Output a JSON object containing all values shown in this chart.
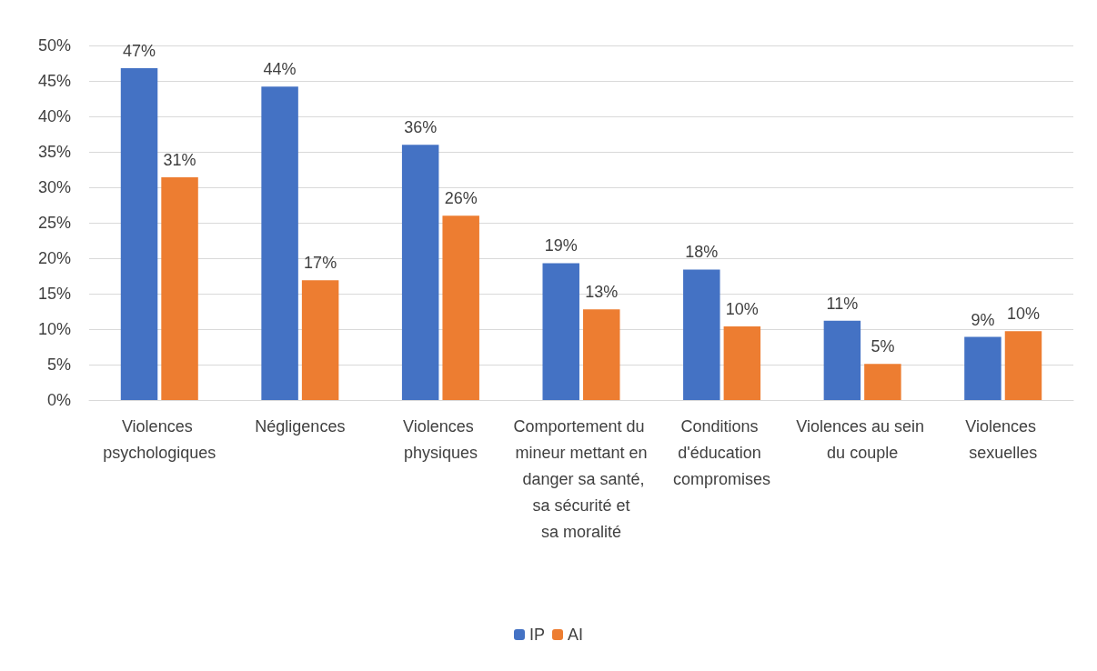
{
  "chart_data": {
    "type": "bar",
    "categories": [
      "Violences psychologiques",
      "Négligences",
      "Violences physiques",
      "Comportement du mineur mettant en danger sa santé, sa sécurité et sa moralité",
      "Conditions d'éducation compromises",
      "Violences au sein du couple",
      "Violences sexuelles"
    ],
    "series": [
      {
        "name": "IP",
        "color": "#4472c4",
        "values": [
          46.8,
          44.2,
          36.0,
          19.3,
          18.4,
          11.2,
          8.9
        ],
        "value_labels": [
          "47%",
          "44%",
          "36%",
          "19%",
          "18%",
          "11%",
          "9%"
        ]
      },
      {
        "name": "AI",
        "color": "#ed7d31",
        "values": [
          31.4,
          16.9,
          26.0,
          12.8,
          10.4,
          5.1,
          9.7
        ],
        "value_labels": [
          "31%",
          "17%",
          "26%",
          "13%",
          "10%",
          "5%",
          "10%"
        ]
      }
    ],
    "ylim": [
      0,
      50
    ],
    "yticks": [
      {
        "value": 0,
        "label": "0%"
      },
      {
        "value": 5,
        "label": "5%"
      },
      {
        "value": 10,
        "label": "10%"
      },
      {
        "value": 15,
        "label": "15%"
      },
      {
        "value": 20,
        "label": "20%"
      },
      {
        "value": 25,
        "label": "25%"
      },
      {
        "value": 30,
        "label": "30%"
      },
      {
        "value": 35,
        "label": "35%"
      },
      {
        "value": 40,
        "label": "40%"
      },
      {
        "value": 45,
        "label": "45%"
      },
      {
        "value": 50,
        "label": "50%"
      }
    ],
    "grid": "y",
    "legend": "bottom"
  }
}
